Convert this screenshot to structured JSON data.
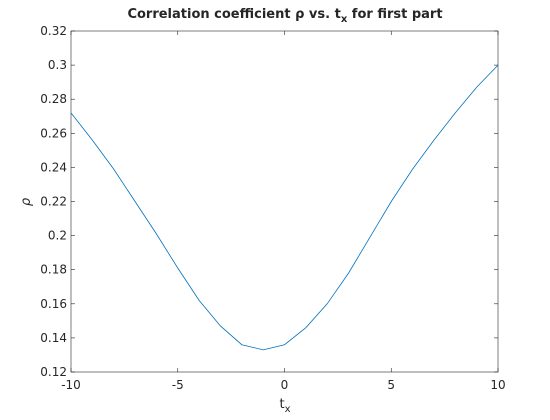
{
  "chart_data": {
    "type": "line",
    "title": {
      "text": "Correlation coefficient ρ vs. t",
      "subscript": "x",
      "suffix": " for first part"
    },
    "xlabel": {
      "text": "t",
      "subscript": "x"
    },
    "ylabel": "ρ",
    "x": [
      -10,
      -9,
      -8,
      -7,
      -6,
      -5,
      -4,
      -3,
      -2,
      -1,
      0,
      1,
      2,
      3,
      4,
      5,
      6,
      7,
      8,
      9,
      10
    ],
    "series": [
      {
        "color": "#0072bd",
        "values": [
          0.272,
          0.256,
          0.239,
          0.22,
          0.201,
          0.181,
          0.162,
          0.147,
          0.136,
          0.133,
          0.136,
          0.146,
          0.16,
          0.178,
          0.199,
          0.22,
          0.239,
          0.256,
          0.272,
          0.287,
          0.3
        ]
      }
    ],
    "xlim": [
      -10,
      10
    ],
    "xticks": [
      -10,
      -5,
      0,
      5,
      10
    ],
    "ylim": [
      0.12,
      0.32
    ],
    "yticks": [
      0.12,
      0.14,
      0.16,
      0.18,
      0.2,
      0.22,
      0.24,
      0.26,
      0.28,
      0.3,
      0.32
    ]
  }
}
